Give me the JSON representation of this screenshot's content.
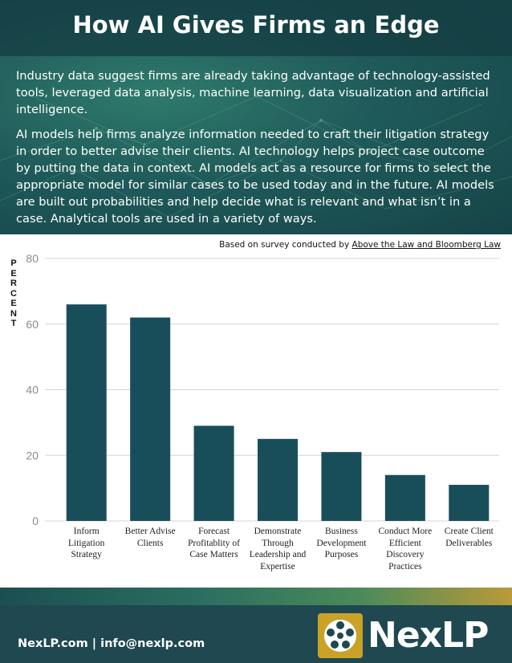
{
  "header": {
    "title": "How AI Gives Firms an Edge",
    "paragraph_1": "Industry data suggest firms are already taking advantage of technology-assisted tools, leveraged data analysis, machine learning, data visualization and artificial intelligence.",
    "paragraph_2": "AI models help firms analyze information needed to craft their litigation strategy in order to better advise their clients. AI technology helps project case outcome by putting the data in context. AI models act as a resource for firms to select the appropriate model for similar cases to be used today and in the future. AI models are built out probabilities and help decide what is relevant and what isn’t in a case. Analytical tools are used in a variety of ways."
  },
  "source": {
    "prefix": "Based on survey conducted by ",
    "link": "Above the Law and Bloomberg Law"
  },
  "colors": {
    "bar": "#184e5a",
    "gridline": "#d4d4d4",
    "footer": "#1f4850",
    "logo_gold": "#c9a227"
  },
  "chart_data": {
    "type": "bar",
    "categories": [
      "Inform Litigation Strategy",
      "Better Advise Clients",
      "Forecast Profitablity of Case Matters",
      "Demonstrate Through Leadership and Expertise",
      "Business Development Purposes",
      "Conduct More Efficient Discovery Practices",
      "Create Client Deliverables"
    ],
    "values": [
      66,
      62,
      29,
      25,
      21,
      14,
      11
    ],
    "ylabel": "PERCENT",
    "xlabel": "",
    "ylim": [
      0,
      80
    ],
    "yticks": [
      0,
      20,
      40,
      60,
      80
    ],
    "grid": true
  },
  "footer": {
    "contact": "NexLP.com  |  info@nexlp.com",
    "logo_text": "NexLP",
    "logo_icon": "reel-icon"
  }
}
